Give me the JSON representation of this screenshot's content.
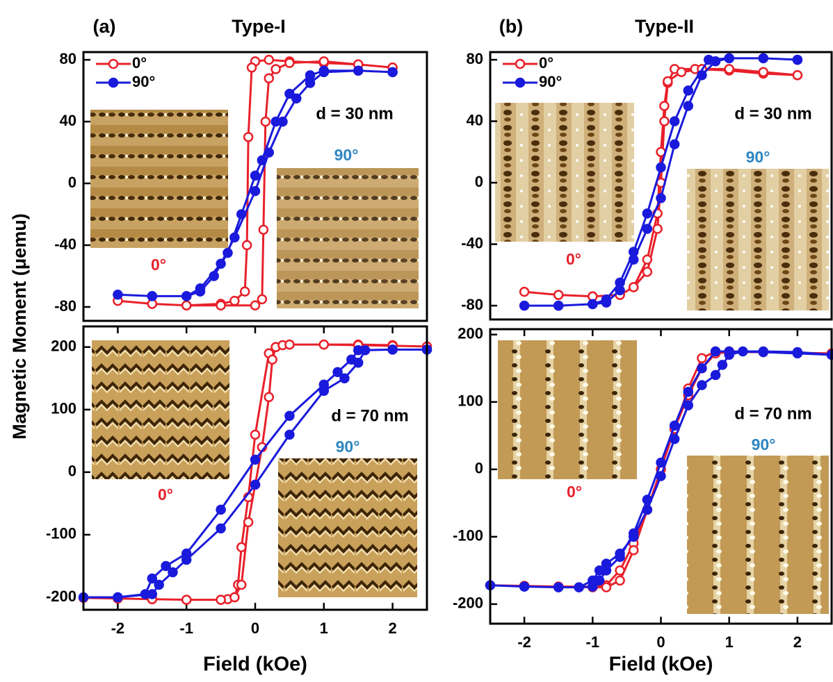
{
  "chart_data": [
    {
      "type": "line",
      "panel_label": "(a)",
      "title": "Type-I",
      "ylabel": "Magnetic Moment (μemu)",
      "annotations": [
        "d = 30 nm",
        "0°",
        "90°"
      ],
      "xlim": [
        -2.5,
        2.5
      ],
      "ylim": [
        -89,
        85
      ],
      "yticks": [
        -80,
        -40,
        0,
        40,
        80
      ],
      "legend": "upper left",
      "series": [
        {
          "name": "0°",
          "color": "#e8202a",
          "marker": "open",
          "x": [
            2,
            1.5,
            1,
            0.5,
            0.2,
            0,
            -0.05,
            -0.1,
            -0.12,
            -0.15,
            -0.3,
            -0.5,
            -1,
            -1.5,
            -2,
            -1.5,
            -1,
            -0.5,
            0,
            0.1,
            0.12,
            0.15,
            0.2,
            0.3,
            0.5,
            1,
            1.5,
            2
          ],
          "values": [
            75,
            77,
            78,
            79,
            80,
            79,
            75,
            30,
            -40,
            -70,
            -76,
            -78,
            -79,
            -78,
            -76,
            -78,
            -79,
            -79,
            -79,
            -75,
            -30,
            40,
            68,
            74,
            78,
            79,
            77,
            75
          ]
        },
        {
          "name": "90°",
          "color": "#1a1adc",
          "marker": "filled",
          "x": [
            2,
            1.5,
            1,
            0.8,
            0.5,
            0.3,
            0.1,
            0,
            -0.2,
            -0.4,
            -0.6,
            -0.8,
            -1,
            -1.5,
            -2,
            -1.5,
            -1,
            -0.8,
            -0.5,
            -0.3,
            0,
            0.2,
            0.4,
            0.6,
            0.8,
            1,
            1.5,
            2
          ],
          "values": [
            72,
            73,
            73,
            70,
            58,
            40,
            15,
            5,
            -20,
            -45,
            -60,
            -70,
            -73,
            -73,
            -72,
            -73,
            -73,
            -68,
            -52,
            -35,
            -5,
            20,
            40,
            55,
            65,
            72,
            73,
            72
          ]
        }
      ]
    },
    {
      "type": "line",
      "panel_label": "(b)",
      "title": "Type-II",
      "annotations": [
        "d = 30 nm",
        "0°",
        "90°"
      ],
      "xlim": [
        -2.5,
        2.5
      ],
      "ylim": [
        -89,
        85
      ],
      "yticks": [
        -80,
        -40,
        0,
        40,
        80
      ],
      "legend": "upper left",
      "series": [
        {
          "name": "0°",
          "color": "#e8202a",
          "marker": "open",
          "x": [
            2,
            1.5,
            1,
            0.5,
            0.2,
            0.1,
            0.05,
            0,
            -0.05,
            -0.2,
            -0.4,
            -0.6,
            -1,
            -1.5,
            -2,
            -1.5,
            -1,
            -0.6,
            -0.4,
            -0.2,
            -0.05,
            0,
            0.05,
            0.1,
            0.3,
            0.6,
            1,
            1.5,
            2
          ],
          "values": [
            70,
            71,
            73,
            74,
            74,
            65,
            40,
            0,
            -30,
            -58,
            -68,
            -73,
            -74,
            -73,
            -71,
            -73,
            -74,
            -73,
            -68,
            -50,
            -20,
            20,
            50,
            66,
            72,
            74,
            74,
            72,
            70
          ]
        },
        {
          "name": "90°",
          "color": "#1a1adc",
          "marker": "filled",
          "x": [
            2,
            1.5,
            1,
            0.7,
            0.4,
            0.2,
            0,
            -0.2,
            -0.4,
            -0.6,
            -0.8,
            -1,
            -1.5,
            -2,
            -1.5,
            -1,
            -0.8,
            -0.6,
            -0.4,
            -0.2,
            0,
            0.2,
            0.4,
            0.6,
            0.8,
            1,
            1.5,
            2
          ],
          "values": [
            80,
            81,
            81,
            80,
            60,
            40,
            10,
            -20,
            -45,
            -65,
            -76,
            -79,
            -80,
            -80,
            -80,
            -79,
            -78,
            -70,
            -50,
            -30,
            -10,
            25,
            50,
            70,
            79,
            81,
            81,
            80
          ]
        }
      ]
    },
    {
      "type": "line",
      "xlabel": "Field (kOe)",
      "annotations": [
        "d = 70 nm",
        "0°",
        "90°"
      ],
      "xlim": [
        -2.5,
        2.5
      ],
      "xticks": [
        -2,
        -1,
        0,
        1,
        2
      ],
      "ylim": [
        -220,
        233
      ],
      "yticks": [
        -200,
        -100,
        0,
        100,
        200
      ],
      "series": [
        {
          "name": "0°",
          "color": "#e8202a",
          "marker": "open",
          "x": [
            2,
            1.5,
            1,
            0.5,
            0.3,
            0.2,
            0,
            -0.1,
            -0.2,
            -0.25,
            -0.3,
            -0.4,
            -0.5,
            -1,
            -1.5,
            -2,
            -2.5,
            -2,
            -1.5,
            -1,
            -0.5,
            -0.3,
            -0.2,
            -0.1,
            0,
            0.1,
            0.2,
            0.25,
            0.3,
            0.4,
            0.5,
            1,
            1.5,
            2,
            2.5
          ],
          "values": [
            203,
            204,
            204,
            204,
            200,
            190,
            60,
            -40,
            -120,
            -180,
            -200,
            -203,
            -204,
            -204,
            -203,
            -202,
            -201,
            -202,
            -203,
            -204,
            -204,
            -200,
            -180,
            -80,
            -20,
            40,
            120,
            180,
            200,
            203,
            204,
            204,
            203,
            202,
            201
          ]
        },
        {
          "name": "90°",
          "color": "#1a1adc",
          "marker": "filled",
          "x": [
            2.5,
            2,
            1.5,
            1.4,
            1.2,
            1,
            0.5,
            0,
            -0.5,
            -1,
            -1.3,
            -1.5,
            -1.6,
            -2,
            -2.5,
            -2,
            -1.5,
            -1.4,
            -1.2,
            -1,
            -0.5,
            0,
            0.5,
            1,
            1.3,
            1.5,
            1.6,
            2,
            2.5
          ],
          "values": [
            196,
            196,
            195,
            180,
            160,
            140,
            90,
            20,
            -60,
            -130,
            -150,
            -170,
            -195,
            -200,
            -200,
            -200,
            -195,
            -180,
            -160,
            -140,
            -90,
            -20,
            60,
            130,
            150,
            175,
            195,
            196,
            196
          ]
        }
      ]
    },
    {
      "type": "line",
      "xlabel": "Field (kOe)",
      "annotations": [
        "d = 70 nm",
        "0°",
        "90°"
      ],
      "xlim": [
        -2.5,
        2.5
      ],
      "xticks": [
        -2,
        -1,
        0,
        1,
        2
      ],
      "ylim": [
        -229,
        208
      ],
      "yticks": [
        -200,
        -100,
        0,
        100,
        200
      ],
      "series": [
        {
          "name": "0°",
          "color": "#e8202a",
          "marker": "open",
          "x": [
            2.5,
            2,
            1.5,
            1,
            0.8,
            0.6,
            0.4,
            0.2,
            0,
            -0.2,
            -0.4,
            -0.6,
            -0.8,
            -1,
            -1.5,
            -2,
            -2.5,
            -2,
            -1.5,
            -1,
            -0.8,
            -0.6,
            -0.4,
            -0.2,
            0,
            0.2,
            0.4,
            0.6,
            0.8,
            1,
            1.5,
            2,
            2.5
          ],
          "values": [
            172,
            173,
            174,
            175,
            175,
            165,
            120,
            60,
            0,
            -60,
            -110,
            -150,
            -172,
            -174,
            -174,
            -173,
            -172,
            -173,
            -174,
            -175,
            -175,
            -165,
            -120,
            -60,
            0,
            60,
            110,
            150,
            172,
            174,
            174,
            173,
            172
          ]
        },
        {
          "name": "90°",
          "color": "#1a1adc",
          "marker": "filled",
          "x": [
            2.5,
            2,
            1.5,
            1,
            0.8,
            0.6,
            0.4,
            0.2,
            0,
            -0.2,
            -0.4,
            -0.6,
            -0.8,
            -0.9,
            -1,
            -1.2,
            -1.5,
            -2,
            -2.5,
            -2,
            -1.5,
            -1.2,
            -1,
            -0.9,
            -0.8,
            -0.6,
            -0.4,
            -0.2,
            0,
            0.2,
            0.4,
            0.6,
            0.8,
            0.9,
            1,
            1.2,
            1.5,
            2,
            2.5
          ],
          "values": [
            170,
            172,
            174,
            175,
            175,
            150,
            115,
            65,
            10,
            -45,
            -95,
            -130,
            -150,
            -165,
            -174,
            -175,
            -175,
            -174,
            -172,
            -174,
            -175,
            -175,
            -165,
            -150,
            -140,
            -125,
            -100,
            -60,
            -10,
            45,
            95,
            125,
            140,
            155,
            170,
            175,
            175,
            174,
            170
          ]
        }
      ]
    }
  ]
}
